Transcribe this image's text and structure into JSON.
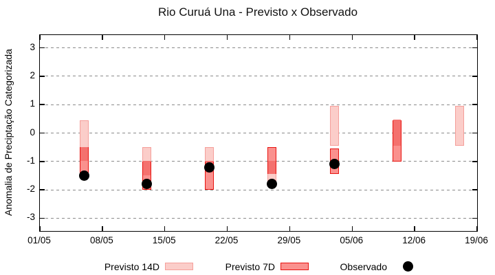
{
  "title": "Rio Curuá Una - Previsto x Observado",
  "axes": {
    "ylabel": "Anomalia de Preciptação Categorizada",
    "yticks": [
      3,
      2,
      1,
      0,
      -1,
      -2,
      -3
    ],
    "xticks": [
      "01/05",
      "08/05",
      "15/05",
      "22/05",
      "29/05",
      "05/06",
      "12/06",
      "19/06"
    ]
  },
  "legend": {
    "previsto14_label": "Previsto 14D",
    "previsto7_label": "Previsto 7D",
    "observado_label": "Observado"
  },
  "colors": {
    "p14_fill": "#fbcdc9",
    "p14_border": "#f59e9a",
    "p7_fill": "#fa918e",
    "p7_border": "#e8120e",
    "overlap_fill": "#f4716e",
    "observado": "#000000",
    "grid": "#8a8a8a",
    "axis": "#000000"
  },
  "chart_data": {
    "type": "bar",
    "subtype": "floating-range-bars-with-observed-scatter",
    "title": "Rio Curuá Una - Previsto x Observado",
    "xlabel": "",
    "ylabel": "Anomalia de Preciptação Categorizada",
    "ylim": [
      -3.45,
      3.45
    ],
    "yticks": [
      -3,
      -2,
      -1,
      0,
      1,
      2,
      3
    ],
    "x_axis_tick_dates": [
      "01/05",
      "08/05",
      "15/05",
      "22/05",
      "29/05",
      "05/06",
      "12/06",
      "19/06"
    ],
    "x_range_days": [
      0,
      49
    ],
    "grid": "horizontal-dashed",
    "legend_position": "bottom",
    "categories": [
      "06/05",
      "13/05",
      "20/05",
      "27/05",
      "03/06",
      "10/06",
      "17/06"
    ],
    "day_offsets": [
      5,
      12,
      19,
      26,
      33,
      40,
      47
    ],
    "series": [
      {
        "name": "Previsto 14D",
        "kind": "range",
        "ranges": [
          [
            -1.0,
            0.45
          ],
          [
            -1.5,
            -0.5
          ],
          [
            -1.4,
            -0.5
          ],
          [
            -1.85,
            -1.0
          ],
          [
            -0.45,
            0.95
          ],
          [
            -0.45,
            0.45
          ],
          [
            -0.45,
            0.95
          ]
        ]
      },
      {
        "name": "Previsto 7D",
        "kind": "range",
        "ranges": [
          [
            -1.5,
            -0.5
          ],
          [
            -2.0,
            -1.0
          ],
          [
            -2.0,
            -1.0
          ],
          [
            -1.45,
            -0.5
          ],
          [
            -1.45,
            -0.55
          ],
          [
            -1.0,
            0.45
          ],
          null
        ]
      },
      {
        "name": "Observado",
        "kind": "scatter",
        "values": [
          -1.5,
          -1.8,
          -1.2,
          -1.8,
          -1.1,
          null,
          null
        ]
      }
    ]
  }
}
